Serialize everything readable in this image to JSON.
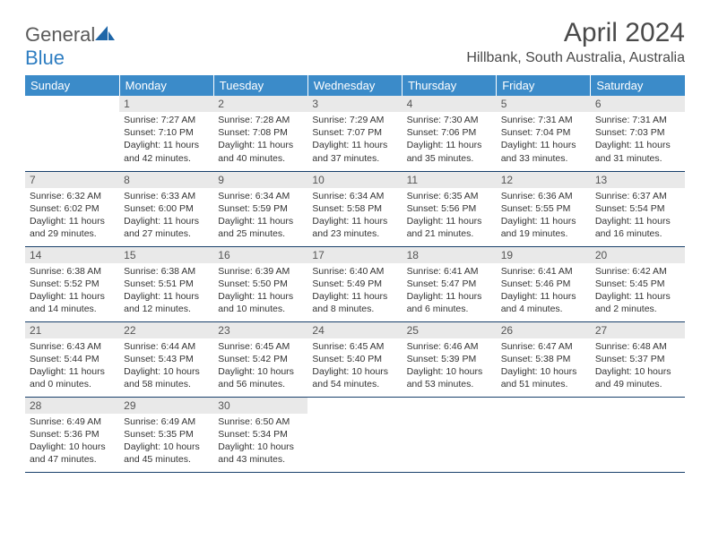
{
  "logo": {
    "part1": "General",
    "part2": "Blue"
  },
  "title": "April 2024",
  "location": "Hillbank, South Australia, Australia",
  "colors": {
    "header_bg": "#3b8bc9",
    "header_text": "#ffffff",
    "daynum_bg": "#e9e9e9",
    "border": "#18406b",
    "logo_gray": "#5a5a5a",
    "logo_blue": "#2f7ec2"
  },
  "calendar": {
    "days_of_week": [
      "Sunday",
      "Monday",
      "Tuesday",
      "Wednesday",
      "Thursday",
      "Friday",
      "Saturday"
    ],
    "weeks": [
      [
        null,
        {
          "n": "1",
          "sr": "7:27 AM",
          "ss": "7:10 PM",
          "dl": "11 hours and 42 minutes."
        },
        {
          "n": "2",
          "sr": "7:28 AM",
          "ss": "7:08 PM",
          "dl": "11 hours and 40 minutes."
        },
        {
          "n": "3",
          "sr": "7:29 AM",
          "ss": "7:07 PM",
          "dl": "11 hours and 37 minutes."
        },
        {
          "n": "4",
          "sr": "7:30 AM",
          "ss": "7:06 PM",
          "dl": "11 hours and 35 minutes."
        },
        {
          "n": "5",
          "sr": "7:31 AM",
          "ss": "7:04 PM",
          "dl": "11 hours and 33 minutes."
        },
        {
          "n": "6",
          "sr": "7:31 AM",
          "ss": "7:03 PM",
          "dl": "11 hours and 31 minutes."
        }
      ],
      [
        {
          "n": "7",
          "sr": "6:32 AM",
          "ss": "6:02 PM",
          "dl": "11 hours and 29 minutes."
        },
        {
          "n": "8",
          "sr": "6:33 AM",
          "ss": "6:00 PM",
          "dl": "11 hours and 27 minutes."
        },
        {
          "n": "9",
          "sr": "6:34 AM",
          "ss": "5:59 PM",
          "dl": "11 hours and 25 minutes."
        },
        {
          "n": "10",
          "sr": "6:34 AM",
          "ss": "5:58 PM",
          "dl": "11 hours and 23 minutes."
        },
        {
          "n": "11",
          "sr": "6:35 AM",
          "ss": "5:56 PM",
          "dl": "11 hours and 21 minutes."
        },
        {
          "n": "12",
          "sr": "6:36 AM",
          "ss": "5:55 PM",
          "dl": "11 hours and 19 minutes."
        },
        {
          "n": "13",
          "sr": "6:37 AM",
          "ss": "5:54 PM",
          "dl": "11 hours and 16 minutes."
        }
      ],
      [
        {
          "n": "14",
          "sr": "6:38 AM",
          "ss": "5:52 PM",
          "dl": "11 hours and 14 minutes."
        },
        {
          "n": "15",
          "sr": "6:38 AM",
          "ss": "5:51 PM",
          "dl": "11 hours and 12 minutes."
        },
        {
          "n": "16",
          "sr": "6:39 AM",
          "ss": "5:50 PM",
          "dl": "11 hours and 10 minutes."
        },
        {
          "n": "17",
          "sr": "6:40 AM",
          "ss": "5:49 PM",
          "dl": "11 hours and 8 minutes."
        },
        {
          "n": "18",
          "sr": "6:41 AM",
          "ss": "5:47 PM",
          "dl": "11 hours and 6 minutes."
        },
        {
          "n": "19",
          "sr": "6:41 AM",
          "ss": "5:46 PM",
          "dl": "11 hours and 4 minutes."
        },
        {
          "n": "20",
          "sr": "6:42 AM",
          "ss": "5:45 PM",
          "dl": "11 hours and 2 minutes."
        }
      ],
      [
        {
          "n": "21",
          "sr": "6:43 AM",
          "ss": "5:44 PM",
          "dl": "11 hours and 0 minutes."
        },
        {
          "n": "22",
          "sr": "6:44 AM",
          "ss": "5:43 PM",
          "dl": "10 hours and 58 minutes."
        },
        {
          "n": "23",
          "sr": "6:45 AM",
          "ss": "5:42 PM",
          "dl": "10 hours and 56 minutes."
        },
        {
          "n": "24",
          "sr": "6:45 AM",
          "ss": "5:40 PM",
          "dl": "10 hours and 54 minutes."
        },
        {
          "n": "25",
          "sr": "6:46 AM",
          "ss": "5:39 PM",
          "dl": "10 hours and 53 minutes."
        },
        {
          "n": "26",
          "sr": "6:47 AM",
          "ss": "5:38 PM",
          "dl": "10 hours and 51 minutes."
        },
        {
          "n": "27",
          "sr": "6:48 AM",
          "ss": "5:37 PM",
          "dl": "10 hours and 49 minutes."
        }
      ],
      [
        {
          "n": "28",
          "sr": "6:49 AM",
          "ss": "5:36 PM",
          "dl": "10 hours and 47 minutes."
        },
        {
          "n": "29",
          "sr": "6:49 AM",
          "ss": "5:35 PM",
          "dl": "10 hours and 45 minutes."
        },
        {
          "n": "30",
          "sr": "6:50 AM",
          "ss": "5:34 PM",
          "dl": "10 hours and 43 minutes."
        },
        null,
        null,
        null,
        null
      ]
    ]
  },
  "labels": {
    "sunrise": "Sunrise:",
    "sunset": "Sunset:",
    "daylight": "Daylight:"
  }
}
